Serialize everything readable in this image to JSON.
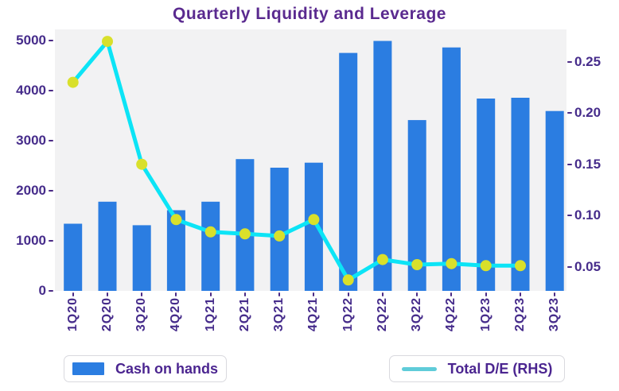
{
  "title": "Quarterly Liquidity and Leverage",
  "legend": {
    "bar_label": "Cash on hands",
    "line_label": "Total D/E (RHS)"
  },
  "colors": {
    "bar": "#2b7de1",
    "line": "#0ce4f6",
    "marker": "#d9e02b",
    "legend_line_swatch": "#5fccd9",
    "title_text": "#5a2a8f",
    "axis_text": "#462c8b",
    "tick_mark": "#4a2a85",
    "plot_background": "#f2f2f3"
  },
  "chart_data": {
    "type": "bar+line",
    "title": "Quarterly Liquidity and Leverage",
    "categories": [
      "1Q20",
      "2Q20",
      "3Q20",
      "4Q20",
      "1Q21",
      "2Q21",
      "3Q21",
      "4Q21",
      "1Q22",
      "2Q22",
      "3Q22",
      "4Q22",
      "1Q23",
      "2Q23",
      "3Q23"
    ],
    "series": [
      {
        "name": "Cash on hands",
        "type": "bar",
        "axis": "left",
        "color": "#2b7de1",
        "values": [
          1340,
          1780,
          1310,
          1610,
          1780,
          2630,
          2460,
          2560,
          4750,
          4990,
          3410,
          4860,
          3840,
          3855,
          3590
        ]
      },
      {
        "name": "Total D/E (RHS)",
        "type": "line",
        "axis": "right",
        "color": "#0ce4f6",
        "marker_color": "#d9e02b",
        "values": [
          0.23,
          0.27,
          0.15,
          0.096,
          0.084,
          0.082,
          0.08,
          0.096,
          0.037,
          0.057,
          0.052,
          0.053,
          0.051,
          0.051,
          null
        ]
      }
    ],
    "left_axis": {
      "ticks": [
        0,
        1000,
        2000,
        3000,
        4000,
        5000
      ],
      "tick_labels": [
        "0",
        "1000",
        "2000",
        "3000",
        "4000",
        "5000"
      ],
      "range": [
        0,
        5220
      ]
    },
    "right_axis": {
      "ticks": [
        0.05,
        0.1,
        0.15,
        0.2,
        0.25
      ],
      "tick_labels": [
        "0.05",
        "0.10",
        "0.15",
        "0.20",
        "0.25"
      ],
      "range": [
        0.0264,
        0.2817
      ]
    },
    "grid": false,
    "legend_position": "bottom",
    "xlabel_rotation": 90
  }
}
